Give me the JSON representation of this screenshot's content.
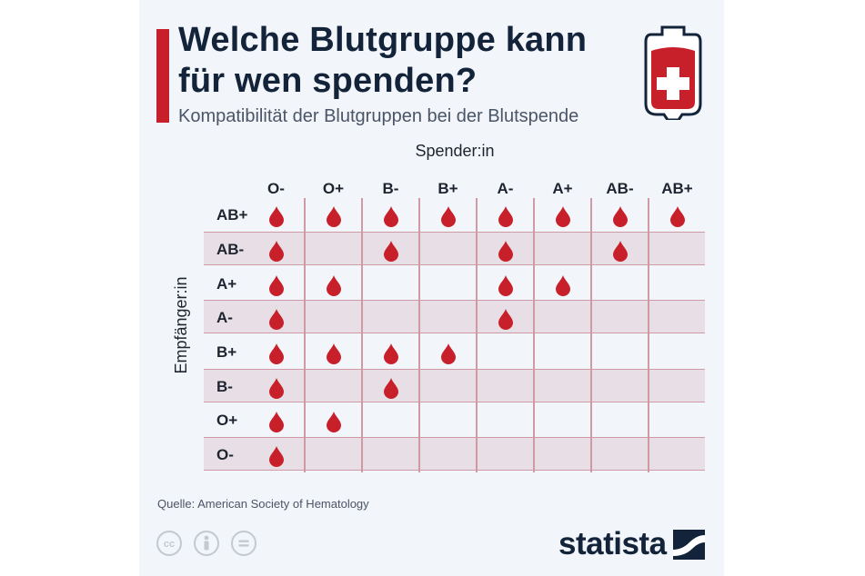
{
  "title": "Welche Blutgruppe kann für wen spenden?",
  "subtitle": "Kompatibilität der Blutgruppen bei der Blutspende",
  "x_axis_title": "Spender:in",
  "y_axis_title": "Empfänger:in",
  "donors": [
    "O-",
    "O+",
    "B-",
    "B+",
    "A-",
    "A+",
    "AB-",
    "AB+"
  ],
  "recipients": [
    "AB+",
    "AB-",
    "A+",
    "A-",
    "B+",
    "B-",
    "O+",
    "O-"
  ],
  "compatibility": [
    [
      1,
      1,
      1,
      1,
      1,
      1,
      1,
      1
    ],
    [
      1,
      0,
      1,
      0,
      1,
      0,
      1,
      0
    ],
    [
      1,
      1,
      0,
      0,
      1,
      1,
      0,
      0
    ],
    [
      1,
      0,
      0,
      0,
      1,
      0,
      0,
      0
    ],
    [
      1,
      1,
      1,
      1,
      0,
      0,
      0,
      0
    ],
    [
      1,
      0,
      1,
      0,
      0,
      0,
      0,
      0
    ],
    [
      1,
      1,
      0,
      0,
      0,
      0,
      0,
      0
    ],
    [
      1,
      0,
      0,
      0,
      0,
      0,
      0,
      0
    ]
  ],
  "source": "Quelle: American Society of Hematology",
  "brand": "statista",
  "colors": {
    "accent": "#c8202a",
    "drop": "#c8202a",
    "band": "#e8dfe6",
    "grid": "#cf9aa3",
    "title": "#13233a"
  }
}
